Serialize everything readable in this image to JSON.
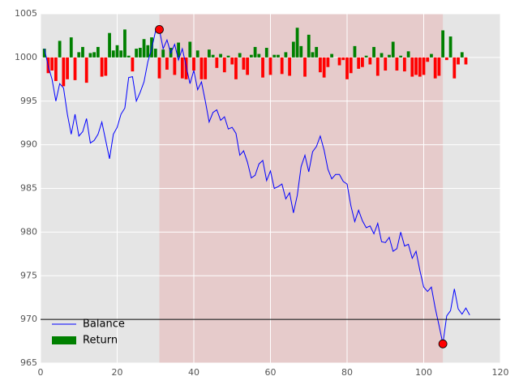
{
  "chart_data": {
    "type": "line",
    "x": [
      1,
      2,
      3,
      4,
      5,
      6,
      7,
      8,
      9,
      10,
      11,
      12,
      13,
      14,
      15,
      16,
      17,
      18,
      19,
      20,
      21,
      22,
      23,
      24,
      25,
      26,
      27,
      28,
      29,
      30,
      31,
      32,
      33,
      34,
      35,
      36,
      37,
      38,
      39,
      40,
      41,
      42,
      43,
      44,
      45,
      46,
      47,
      48,
      49,
      50,
      51,
      52,
      53,
      54,
      55,
      56,
      57,
      58,
      59,
      60,
      61,
      62,
      63,
      64,
      65,
      66,
      67,
      68,
      69,
      70,
      71,
      72,
      73,
      74,
      75,
      76,
      77,
      78,
      79,
      80,
      81,
      82,
      83,
      84,
      85,
      86,
      87,
      88,
      89,
      90,
      91,
      92,
      93,
      94,
      95,
      96,
      97,
      98,
      99,
      100,
      101,
      102,
      103,
      104,
      105,
      106,
      107,
      108,
      109,
      110,
      111,
      112
    ],
    "series": [
      {
        "name": "Balance",
        "type": "line",
        "color": "#0000ff",
        "values": [
          1001,
          999,
          997.5,
          995,
          997,
          996.5,
          993.5,
          991.2,
          993.5,
          991,
          991.5,
          993,
          990.2,
          990.5,
          991.2,
          992.6,
          990.5,
          988.4,
          991.2,
          992,
          993.5,
          994.2,
          997.7,
          997.8,
          995,
          996,
          997.2,
          999.5,
          1001,
          1003,
          1003.2,
          1001,
          1002,
          1000.5,
          1001.5,
          999.7,
          1001,
          999,
          997,
          998.5,
          996.3,
          997.2,
          995,
          992.6,
          993.7,
          994,
          992.8,
          993.2,
          991.8,
          992,
          991.3,
          988.8,
          989.3,
          988,
          986.2,
          986.5,
          987.8,
          988.2,
          985.9,
          987,
          985,
          985.2,
          985.5,
          983.8,
          984.5,
          982.2,
          984.2,
          987.5,
          988.8,
          986.9,
          989.2,
          989.8,
          991,
          989.4,
          987.2,
          986.1,
          986.6,
          986.6,
          985.8,
          985.5,
          983,
          981.2,
          982.5,
          981.3,
          980.5,
          980.7,
          979.8,
          981,
          978.9,
          978.8,
          979.4,
          977.8,
          978.1,
          980,
          978.4,
          978.6,
          977,
          977.8,
          975.6,
          973.7,
          973.2,
          973.7,
          971.3,
          969.3,
          967.2,
          970.4,
          971,
          973.5,
          971.2,
          970.6,
          971.3,
          970.5
        ]
      },
      {
        "name": "Return",
        "type": "bar",
        "color": "#008000",
        "negative_color": "#ff0000",
        "base": 1000,
        "values": [
          1.0,
          -1.8,
          -1.5,
          -2.7,
          1.9,
          -3.3,
          -2.5,
          2.3,
          -2.6,
          0.6,
          1.2,
          -2.9,
          0.5,
          0.6,
          1.2,
          -2.2,
          -2.1,
          2.8,
          0.8,
          1.4,
          0.8,
          3.2,
          0.2,
          -1.6,
          1.0,
          1.1,
          2.1,
          1.4,
          2.3,
          1.0,
          -2.4,
          0.9,
          -1.4,
          1.1,
          -2.0,
          1.7,
          -2.4,
          -2.5,
          1.8,
          -1.5,
          0.8,
          -2.5,
          -2.5,
          0.9,
          0.3,
          -1.2,
          0.4,
          -1.7,
          0.2,
          -0.8,
          -2.5,
          0.5,
          -1.4,
          -2.0,
          0.3,
          1.2,
          0.4,
          -2.3,
          1.1,
          -2.0,
          0.3,
          0.3,
          -1.9,
          0.6,
          -2.1,
          1.8,
          3.4,
          1.3,
          -2.2,
          2.6,
          0.6,
          1.2,
          -1.7,
          -2.3,
          -1.1,
          0.4,
          0,
          -0.9,
          -0.3,
          -2.5,
          -1.8,
          1.3,
          -1.3,
          -1.1,
          0.2,
          -0.8,
          1.2,
          -2.1,
          0.5,
          -1.5,
          0.3,
          1.8,
          -1.5,
          0.2,
          -1.6,
          0.7,
          -2.2,
          -2.0,
          -2.2,
          -2.0,
          -0.5,
          0.4,
          -2.4,
          -2.1,
          3.1,
          -0.3,
          2.4,
          -2.4,
          -0.8,
          0.6,
          -0.8,
          0
        ]
      }
    ],
    "span": [
      31,
      105
    ],
    "span_color": "#e6cbcb",
    "hline": 970,
    "markers": {
      "color": "#ff0000",
      "x": [
        31,
        105
      ],
      "y": [
        1003.2,
        967.2
      ]
    },
    "xlim": [
      0,
      120
    ],
    "xticks": [
      0,
      20,
      40,
      60,
      80,
      100,
      120
    ],
    "ylim": [
      965,
      1005
    ],
    "yticks": [
      965,
      970,
      975,
      980,
      985,
      990,
      995,
      1000,
      1005
    ],
    "grid": true,
    "legend": "lower left"
  }
}
